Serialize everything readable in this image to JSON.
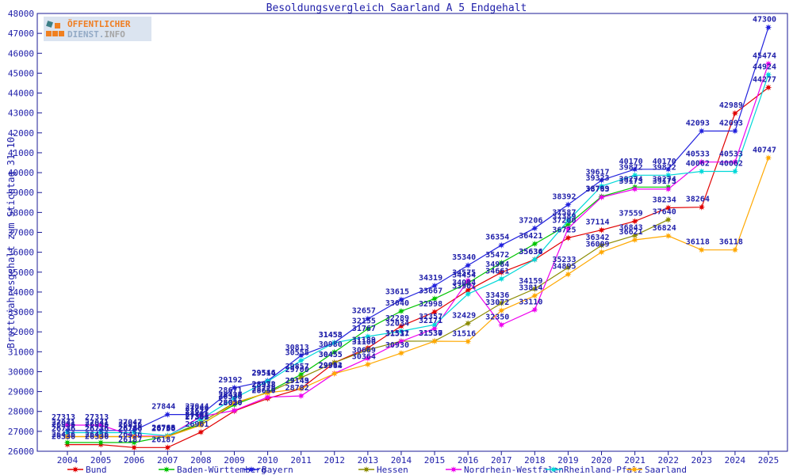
{
  "header": {
    "title": "Besoldungsvergleich Saarland A 5 Endgehalt"
  },
  "logo": {
    "line1": "ÖFFENTLICHER",
    "line2_a": "DIENST.",
    "line2_b": "INFO"
  },
  "y_axis": {
    "label": "Bruttojahresgehalt zum Stichtag 31.10.",
    "min": 26000,
    "max": 48000,
    "step": 1000
  },
  "chart_data": {
    "type": "line",
    "title": "Besoldungsvergleich Saarland A 5 Endgehalt",
    "xlabel": "",
    "ylabel": "Bruttojahresgehalt zum Stichtag 31.10.",
    "ylim": [
      26000,
      48000
    ],
    "grid": false,
    "legend_position": "bottom",
    "point_labels": true,
    "x": [
      2004,
      2005,
      2006,
      2007,
      2008,
      2009,
      2010,
      2011,
      2012,
      2013,
      2014,
      2015,
      2016,
      2017,
      2018,
      2019,
      2020,
      2021,
      2022,
      2023,
      2024,
      2025
    ],
    "series": [
      {
        "name": "Bund",
        "color": "#e10000",
        "values": [
          26336,
          26336,
          26187,
          26187,
          26961,
          28020,
          28650,
          29149,
          30455,
          31189,
          32289,
          32998,
          34084,
          34984,
          35636,
          36725,
          37114,
          37559,
          38234,
          38264,
          42989,
          44277
        ]
      },
      {
        "name": "Baden-Württemberg",
        "color": "#00c400",
        "values": [
          26436,
          26436,
          26436,
          26766,
          27351,
          28338,
          28972,
          29857,
          30980,
          32155,
          33040,
          33667,
          34454,
          35472,
          36421,
          37389,
          38799,
          39274,
          39274,
          null,
          null,
          null
        ]
      },
      {
        "name": "Bayern",
        "color": "#2222dd",
        "values": [
          27041,
          27041,
          27047,
          27844,
          27844,
          29192,
          29546,
          30813,
          31458,
          32657,
          33615,
          34319,
          35340,
          36354,
          37206,
          38392,
          39617,
          40170,
          40170,
          42093,
          42093,
          47300
        ]
      },
      {
        "name": "Hessen",
        "color": "#8b8b00",
        "values": [
          26736,
          26736,
          26736,
          26736,
          27451,
          28434,
          28938,
          29700,
          30455,
          31100,
          31531,
          31537,
          32429,
          33436,
          34159,
          35233,
          36342,
          36843,
          37640,
          null,
          null,
          null
        ]
      },
      {
        "name": "Nordrhein-Westfalen",
        "color": "#ee00ee",
        "values": [
          27313,
          27313,
          26760,
          26760,
          27744,
          28050,
          28720,
          28782,
          29912,
          30669,
          31517,
          32171,
          34575,
          32350,
          33110,
          37200,
          38763,
          39173,
          39173,
          40533,
          40533,
          45474
        ]
      },
      {
        "name": "Rheinland-Pfalz",
        "color": "#00d8d8",
        "values": [
          26936,
          26936,
          26936,
          26783,
          27611,
          28671,
          29514,
          30558,
          31453,
          31767,
          32034,
          32357,
          33901,
          34661,
          35634,
          37587,
          39323,
          39872,
          39872,
          40062,
          40062,
          44924
        ]
      },
      {
        "name": "Saarland",
        "color": "#ffa800",
        "values": [
          26736,
          26736,
          26736,
          26736,
          27308,
          28420,
          28938,
          29143,
          29904,
          30364,
          30930,
          31530,
          31516,
          33072,
          33814,
          34895,
          36009,
          36621,
          36824,
          36118,
          36118,
          40747
        ]
      }
    ]
  }
}
